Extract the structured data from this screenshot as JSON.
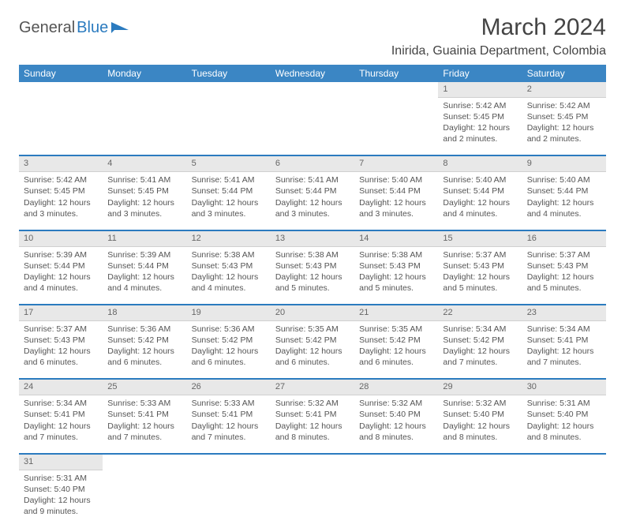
{
  "brand": {
    "part1": "General",
    "part2": "Blue"
  },
  "title": "March 2024",
  "location": "Inirida, Guainia Department, Colombia",
  "colors": {
    "header_bg": "#3b86c4",
    "header_text": "#ffffff",
    "daynum_bg": "#e8e8e8",
    "row_divider": "#2b7bbf",
    "text": "#555555"
  },
  "day_headers": [
    "Sunday",
    "Monday",
    "Tuesday",
    "Wednesday",
    "Thursday",
    "Friday",
    "Saturday"
  ],
  "weeks": [
    [
      null,
      null,
      null,
      null,
      null,
      {
        "n": "1",
        "sr": "5:42 AM",
        "ss": "5:45 PM",
        "dl": "12 hours and 2 minutes."
      },
      {
        "n": "2",
        "sr": "5:42 AM",
        "ss": "5:45 PM",
        "dl": "12 hours and 2 minutes."
      }
    ],
    [
      {
        "n": "3",
        "sr": "5:42 AM",
        "ss": "5:45 PM",
        "dl": "12 hours and 3 minutes."
      },
      {
        "n": "4",
        "sr": "5:41 AM",
        "ss": "5:45 PM",
        "dl": "12 hours and 3 minutes."
      },
      {
        "n": "5",
        "sr": "5:41 AM",
        "ss": "5:44 PM",
        "dl": "12 hours and 3 minutes."
      },
      {
        "n": "6",
        "sr": "5:41 AM",
        "ss": "5:44 PM",
        "dl": "12 hours and 3 minutes."
      },
      {
        "n": "7",
        "sr": "5:40 AM",
        "ss": "5:44 PM",
        "dl": "12 hours and 3 minutes."
      },
      {
        "n": "8",
        "sr": "5:40 AM",
        "ss": "5:44 PM",
        "dl": "12 hours and 4 minutes."
      },
      {
        "n": "9",
        "sr": "5:40 AM",
        "ss": "5:44 PM",
        "dl": "12 hours and 4 minutes."
      }
    ],
    [
      {
        "n": "10",
        "sr": "5:39 AM",
        "ss": "5:44 PM",
        "dl": "12 hours and 4 minutes."
      },
      {
        "n": "11",
        "sr": "5:39 AM",
        "ss": "5:44 PM",
        "dl": "12 hours and 4 minutes."
      },
      {
        "n": "12",
        "sr": "5:38 AM",
        "ss": "5:43 PM",
        "dl": "12 hours and 4 minutes."
      },
      {
        "n": "13",
        "sr": "5:38 AM",
        "ss": "5:43 PM",
        "dl": "12 hours and 5 minutes."
      },
      {
        "n": "14",
        "sr": "5:38 AM",
        "ss": "5:43 PM",
        "dl": "12 hours and 5 minutes."
      },
      {
        "n": "15",
        "sr": "5:37 AM",
        "ss": "5:43 PM",
        "dl": "12 hours and 5 minutes."
      },
      {
        "n": "16",
        "sr": "5:37 AM",
        "ss": "5:43 PM",
        "dl": "12 hours and 5 minutes."
      }
    ],
    [
      {
        "n": "17",
        "sr": "5:37 AM",
        "ss": "5:43 PM",
        "dl": "12 hours and 6 minutes."
      },
      {
        "n": "18",
        "sr": "5:36 AM",
        "ss": "5:42 PM",
        "dl": "12 hours and 6 minutes."
      },
      {
        "n": "19",
        "sr": "5:36 AM",
        "ss": "5:42 PM",
        "dl": "12 hours and 6 minutes."
      },
      {
        "n": "20",
        "sr": "5:35 AM",
        "ss": "5:42 PM",
        "dl": "12 hours and 6 minutes."
      },
      {
        "n": "21",
        "sr": "5:35 AM",
        "ss": "5:42 PM",
        "dl": "12 hours and 6 minutes."
      },
      {
        "n": "22",
        "sr": "5:34 AM",
        "ss": "5:42 PM",
        "dl": "12 hours and 7 minutes."
      },
      {
        "n": "23",
        "sr": "5:34 AM",
        "ss": "5:41 PM",
        "dl": "12 hours and 7 minutes."
      }
    ],
    [
      {
        "n": "24",
        "sr": "5:34 AM",
        "ss": "5:41 PM",
        "dl": "12 hours and 7 minutes."
      },
      {
        "n": "25",
        "sr": "5:33 AM",
        "ss": "5:41 PM",
        "dl": "12 hours and 7 minutes."
      },
      {
        "n": "26",
        "sr": "5:33 AM",
        "ss": "5:41 PM",
        "dl": "12 hours and 7 minutes."
      },
      {
        "n": "27",
        "sr": "5:32 AM",
        "ss": "5:41 PM",
        "dl": "12 hours and 8 minutes."
      },
      {
        "n": "28",
        "sr": "5:32 AM",
        "ss": "5:40 PM",
        "dl": "12 hours and 8 minutes."
      },
      {
        "n": "29",
        "sr": "5:32 AM",
        "ss": "5:40 PM",
        "dl": "12 hours and 8 minutes."
      },
      {
        "n": "30",
        "sr": "5:31 AM",
        "ss": "5:40 PM",
        "dl": "12 hours and 8 minutes."
      }
    ],
    [
      {
        "n": "31",
        "sr": "5:31 AM",
        "ss": "5:40 PM",
        "dl": "12 hours and 9 minutes."
      },
      null,
      null,
      null,
      null,
      null,
      null
    ]
  ],
  "labels": {
    "sunrise": "Sunrise: ",
    "sunset": "Sunset: ",
    "daylight": "Daylight: "
  }
}
